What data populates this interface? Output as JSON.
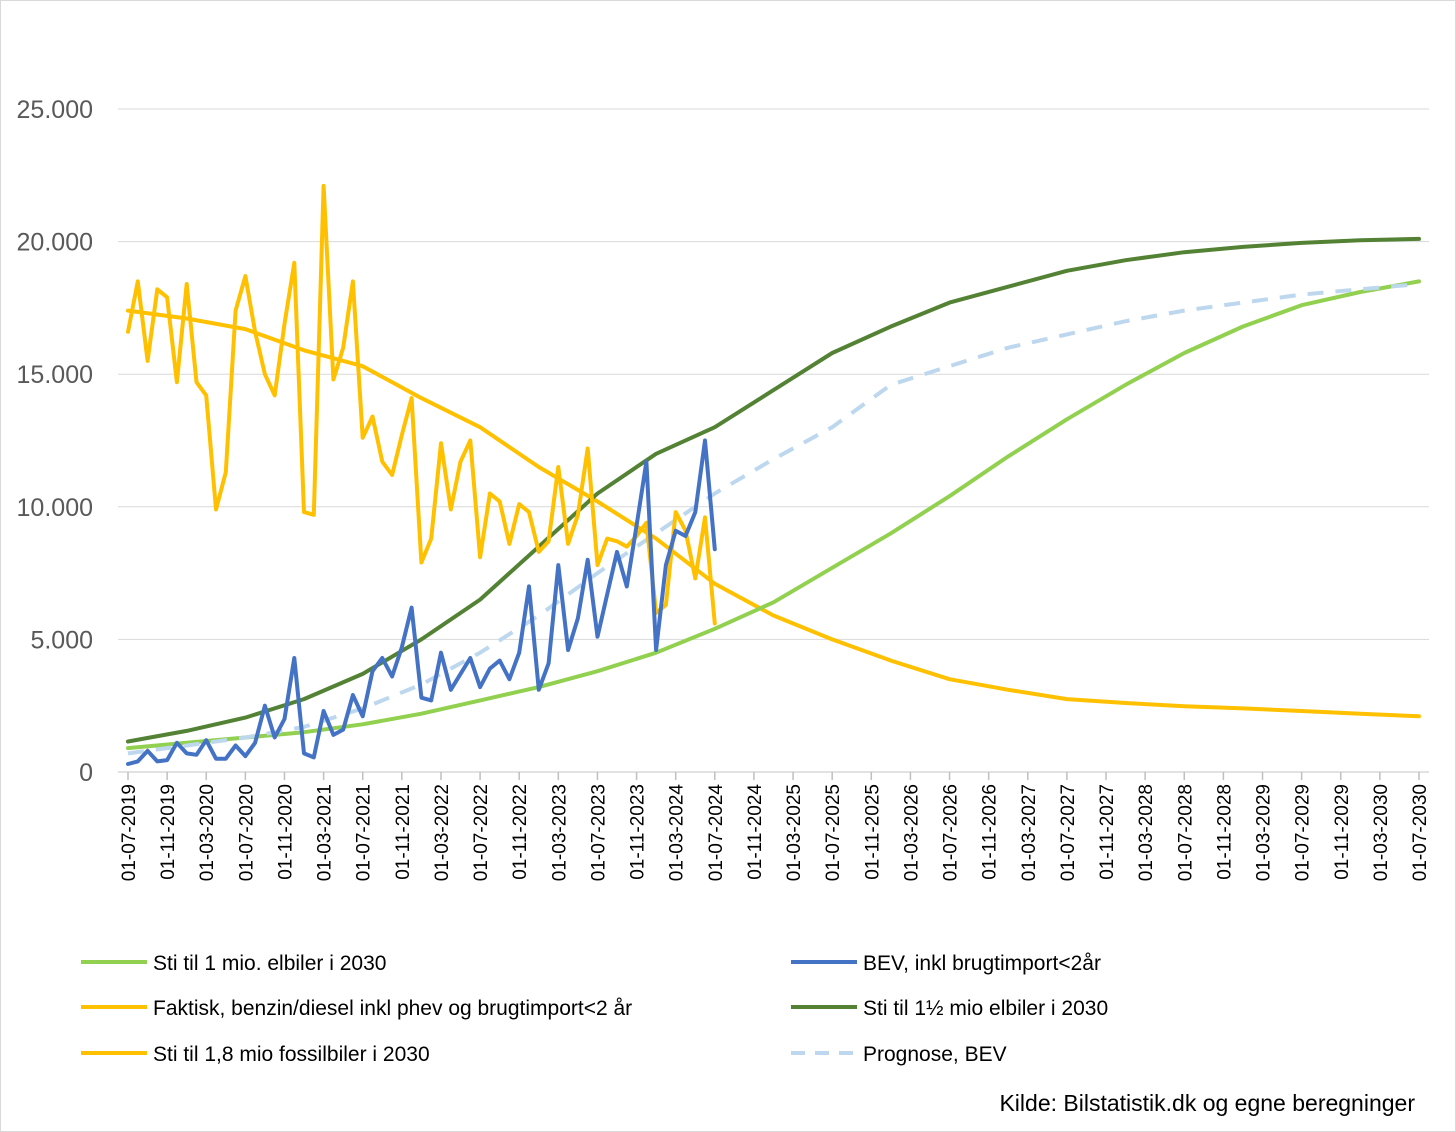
{
  "chart_data": {
    "type": "line",
    "title": "",
    "xlabel": "",
    "ylabel": "",
    "ylim": [
      0,
      25000
    ],
    "yticks": [
      0,
      5000,
      10000,
      15000,
      20000,
      25000
    ],
    "ytick_labels": [
      "0",
      "5.000",
      "10.000",
      "15.000",
      "20.000",
      "25.000"
    ],
    "x_range_months": [
      0,
      132
    ],
    "xtick_labels": [
      "01-07-2019",
      "01-11-2019",
      "01-03-2020",
      "01-07-2020",
      "01-11-2020",
      "01-03-2021",
      "01-07-2021",
      "01-11-2021",
      "01-03-2022",
      "01-07-2022",
      "01-11-2022",
      "01-03-2023",
      "01-07-2023",
      "01-11-2023",
      "01-03-2024",
      "01-07-2024",
      "01-11-2024",
      "01-03-2025",
      "01-07-2025",
      "01-11-2025",
      "01-03-2026",
      "01-07-2026",
      "01-11-2026",
      "01-03-2027",
      "01-07-2027",
      "01-11-2027",
      "01-03-2028",
      "01-07-2028",
      "01-11-2028",
      "01-03-2029",
      "01-07-2029",
      "01-11-2029",
      "01-03-2030",
      "01-07-2030"
    ],
    "grid": true,
    "source": "Kilde: Bilstatistik.dk og egne beregninger",
    "series": [
      {
        "name": "Sti til 1 mio. elbiler i 2030",
        "color": "#92d050",
        "dash": false,
        "width": 4,
        "points": [
          [
            0,
            900
          ],
          [
            6,
            1100
          ],
          [
            12,
            1300
          ],
          [
            18,
            1500
          ],
          [
            24,
            1800
          ],
          [
            30,
            2200
          ],
          [
            36,
            2700
          ],
          [
            42,
            3200
          ],
          [
            48,
            3800
          ],
          [
            54,
            4500
          ],
          [
            60,
            5400
          ],
          [
            66,
            6400
          ],
          [
            72,
            7700
          ],
          [
            78,
            9000
          ],
          [
            84,
            10400
          ],
          [
            90,
            11900
          ],
          [
            96,
            13300
          ],
          [
            102,
            14600
          ],
          [
            108,
            15800
          ],
          [
            114,
            16800
          ],
          [
            120,
            17600
          ],
          [
            126,
            18100
          ],
          [
            132,
            18500
          ]
        ]
      },
      {
        "name": "BEV, inkl brugtimport<2år",
        "color": "#4472c4",
        "dash": false,
        "width": 4,
        "points": [
          [
            0,
            300
          ],
          [
            1,
            400
          ],
          [
            2,
            800
          ],
          [
            3,
            400
          ],
          [
            4,
            450
          ],
          [
            5,
            1100
          ],
          [
            6,
            700
          ],
          [
            7,
            650
          ],
          [
            8,
            1200
          ],
          [
            9,
            500
          ],
          [
            10,
            500
          ],
          [
            11,
            1000
          ],
          [
            12,
            600
          ],
          [
            13,
            1100
          ],
          [
            14,
            2500
          ],
          [
            15,
            1300
          ],
          [
            16,
            2000
          ],
          [
            17,
            4300
          ],
          [
            18,
            700
          ],
          [
            19,
            550
          ],
          [
            20,
            2300
          ],
          [
            21,
            1400
          ],
          [
            22,
            1600
          ],
          [
            23,
            2900
          ],
          [
            24,
            2100
          ],
          [
            25,
            3800
          ],
          [
            26,
            4300
          ],
          [
            27,
            3600
          ],
          [
            28,
            4700
          ],
          [
            29,
            6200
          ],
          [
            30,
            2800
          ],
          [
            31,
            2700
          ],
          [
            32,
            4500
          ],
          [
            33,
            3100
          ],
          [
            34,
            3700
          ],
          [
            35,
            4300
          ],
          [
            36,
            3200
          ],
          [
            37,
            3900
          ],
          [
            38,
            4200
          ],
          [
            39,
            3500
          ],
          [
            40,
            4500
          ],
          [
            41,
            7000
          ],
          [
            42,
            3100
          ],
          [
            43,
            4100
          ],
          [
            44,
            7800
          ],
          [
            45,
            4600
          ],
          [
            46,
            5800
          ],
          [
            47,
            8000
          ],
          [
            48,
            5100
          ],
          [
            49,
            6700
          ],
          [
            50,
            8300
          ],
          [
            51,
            7000
          ],
          [
            52,
            9300
          ],
          [
            53,
            11700
          ],
          [
            54,
            4600
          ],
          [
            55,
            7800
          ],
          [
            56,
            9100
          ],
          [
            57,
            8900
          ],
          [
            58,
            9800
          ],
          [
            59,
            12500
          ],
          [
            60,
            8400
          ]
        ]
      },
      {
        "name": "Faktisk, benzin/diesel inkl phev og brugtimport<2 år",
        "color": "#ffc000",
        "dash": false,
        "width": 4,
        "points": [
          [
            0,
            16600
          ],
          [
            1,
            18500
          ],
          [
            2,
            15500
          ],
          [
            3,
            18200
          ],
          [
            4,
            17900
          ],
          [
            5,
            14700
          ],
          [
            6,
            18400
          ],
          [
            7,
            14700
          ],
          [
            8,
            14200
          ],
          [
            9,
            9900
          ],
          [
            10,
            11300
          ],
          [
            11,
            17400
          ],
          [
            12,
            18700
          ],
          [
            13,
            16600
          ],
          [
            14,
            15000
          ],
          [
            15,
            14200
          ],
          [
            16,
            16900
          ],
          [
            17,
            19200
          ],
          [
            18,
            9800
          ],
          [
            19,
            9700
          ],
          [
            20,
            22100
          ],
          [
            21,
            14800
          ],
          [
            22,
            16000
          ],
          [
            23,
            18500
          ],
          [
            24,
            12600
          ],
          [
            25,
            13400
          ],
          [
            26,
            11700
          ],
          [
            27,
            11200
          ],
          [
            28,
            12700
          ],
          [
            29,
            14100
          ],
          [
            30,
            7900
          ],
          [
            31,
            8800
          ],
          [
            32,
            12400
          ],
          [
            33,
            9900
          ],
          [
            34,
            11700
          ],
          [
            35,
            12500
          ],
          [
            36,
            8100
          ],
          [
            37,
            10500
          ],
          [
            38,
            10200
          ],
          [
            39,
            8600
          ],
          [
            40,
            10100
          ],
          [
            41,
            9800
          ],
          [
            42,
            8300
          ],
          [
            43,
            8700
          ],
          [
            44,
            11500
          ],
          [
            45,
            8600
          ],
          [
            46,
            9700
          ],
          [
            47,
            12200
          ],
          [
            48,
            7800
          ],
          [
            49,
            8800
          ],
          [
            50,
            8700
          ],
          [
            51,
            8500
          ],
          [
            52,
            8900
          ],
          [
            53,
            9400
          ],
          [
            54,
            6000
          ],
          [
            55,
            6300
          ],
          [
            56,
            9800
          ],
          [
            57,
            9100
          ],
          [
            58,
            7300
          ],
          [
            59,
            9600
          ],
          [
            60,
            5600
          ]
        ]
      },
      {
        "name": "Sti til 1½ mio elbiler i 2030",
        "color": "#548235",
        "dash": false,
        "width": 4,
        "points": [
          [
            0,
            1150
          ],
          [
            6,
            1550
          ],
          [
            12,
            2050
          ],
          [
            18,
            2750
          ],
          [
            24,
            3700
          ],
          [
            30,
            5000
          ],
          [
            36,
            6500
          ],
          [
            42,
            8500
          ],
          [
            48,
            10500
          ],
          [
            54,
            12000
          ],
          [
            60,
            13000
          ],
          [
            66,
            14400
          ],
          [
            72,
            15800
          ],
          [
            78,
            16800
          ],
          [
            84,
            17700
          ],
          [
            90,
            18300
          ],
          [
            96,
            18900
          ],
          [
            102,
            19300
          ],
          [
            108,
            19600
          ],
          [
            114,
            19800
          ],
          [
            120,
            19950
          ],
          [
            126,
            20050
          ],
          [
            132,
            20100
          ]
        ]
      },
      {
        "name": "Sti til 1,8 mio fossilbiler i 2030",
        "color": "#ffc000",
        "dash": false,
        "width": 4,
        "points": [
          [
            0,
            17400
          ],
          [
            6,
            17100
          ],
          [
            12,
            16700
          ],
          [
            18,
            15900
          ],
          [
            24,
            15300
          ],
          [
            30,
            14100
          ],
          [
            36,
            13000
          ],
          [
            42,
            11500
          ],
          [
            48,
            10200
          ],
          [
            54,
            8800
          ],
          [
            60,
            7100
          ],
          [
            66,
            5900
          ],
          [
            72,
            5000
          ],
          [
            78,
            4200
          ],
          [
            84,
            3500
          ],
          [
            90,
            3100
          ],
          [
            96,
            2750
          ],
          [
            102,
            2600
          ],
          [
            108,
            2480
          ],
          [
            114,
            2400
          ],
          [
            120,
            2300
          ],
          [
            126,
            2200
          ],
          [
            132,
            2100
          ]
        ]
      },
      {
        "name": "Prognose, BEV",
        "color": "#bdd7ee",
        "dash": true,
        "width": 4,
        "points": [
          [
            0,
            700
          ],
          [
            6,
            1000
          ],
          [
            12,
            1300
          ],
          [
            18,
            1700
          ],
          [
            24,
            2400
          ],
          [
            30,
            3300
          ],
          [
            36,
            4500
          ],
          [
            42,
            5900
          ],
          [
            48,
            7500
          ],
          [
            54,
            9000
          ],
          [
            60,
            10500
          ],
          [
            66,
            11800
          ],
          [
            72,
            13000
          ],
          [
            78,
            14600
          ],
          [
            84,
            15300
          ],
          [
            90,
            16000
          ],
          [
            96,
            16500
          ],
          [
            102,
            17000
          ],
          [
            108,
            17400
          ],
          [
            114,
            17700
          ],
          [
            120,
            18000
          ],
          [
            126,
            18200
          ],
          [
            132,
            18400
          ]
        ]
      }
    ],
    "legend": [
      {
        "label": "Sti til 1 mio. elbiler i 2030",
        "color": "#92d050",
        "dash": false
      },
      {
        "label": "BEV, inkl brugtimport<2år",
        "color": "#4472c4",
        "dash": false
      },
      {
        "label": "Faktisk, benzin/diesel inkl phev og brugtimport<2 år",
        "color": "#ffc000",
        "dash": false
      },
      {
        "label": "Sti til 1½ mio elbiler i 2030",
        "color": "#548235",
        "dash": false
      },
      {
        "label": "Sti til 1,8 mio fossilbiler i 2030",
        "color": "#ffc000",
        "dash": false
      },
      {
        "label": "Prognose, BEV",
        "color": "#bdd7ee",
        "dash": true
      }
    ]
  }
}
